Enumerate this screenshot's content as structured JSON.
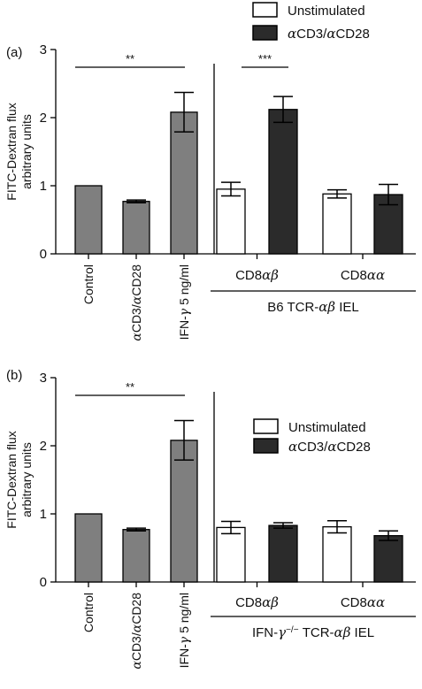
{
  "chart_data": [
    {
      "type": "bar",
      "panel_label": "(a)",
      "ylabel_lines": [
        "FITC-Dextran flux",
        "arbitrary units"
      ],
      "ylim": [
        0,
        3
      ],
      "yticks": [
        "0",
        "1",
        "2",
        "3"
      ],
      "legend": [
        {
          "name": "Unstimulated",
          "color": "#ffffff"
        },
        {
          "name": "αCD3/αCD28",
          "color": "#2b2b2b"
        }
      ],
      "left_group": {
        "categories": [
          "Control",
          "αCD3/αCD28",
          "IFN-γ 5 ng/ml"
        ],
        "color": "#7f7f7f",
        "values": [
          1.0,
          0.77,
          2.08
        ],
        "errors": [
          0.0,
          0.02,
          0.29
        ],
        "significance": {
          "label": "**",
          "from": 0,
          "to": 2
        }
      },
      "right_group": {
        "subgroups": [
          "CD8αβ",
          "CD8αα"
        ],
        "series": [
          {
            "name": "Unstimulated",
            "values": [
              0.95,
              0.88
            ],
            "errors": [
              0.1,
              0.06
            ]
          },
          {
            "name": "αCD3/αCD28",
            "values": [
              2.12,
              0.87
            ],
            "errors": [
              0.19,
              0.15
            ]
          }
        ],
        "significance": {
          "label": "***",
          "subgroup": 0
        },
        "group_label": "B6 TCR-αβ IEL"
      }
    },
    {
      "type": "bar",
      "panel_label": "(b)",
      "ylabel_lines": [
        "FITC-Dextran flux",
        "arbitrary units"
      ],
      "ylim": [
        0,
        3
      ],
      "yticks": [
        "0",
        "1",
        "2",
        "3"
      ],
      "legend": [
        {
          "name": "Unstimulated",
          "color": "#ffffff"
        },
        {
          "name": "αCD3/αCD28",
          "color": "#2b2b2b"
        }
      ],
      "left_group": {
        "categories": [
          "Control",
          "αCD3/αCD28",
          "IFN-γ 5 ng/ml"
        ],
        "color": "#7f7f7f",
        "values": [
          1.0,
          0.77,
          2.08
        ],
        "errors": [
          0.0,
          0.02,
          0.29
        ],
        "significance": {
          "label": "**",
          "from": 0,
          "to": 2
        }
      },
      "right_group": {
        "subgroups": [
          "CD8αβ",
          "CD8αα"
        ],
        "series": [
          {
            "name": "Unstimulated",
            "values": [
              0.8,
              0.81
            ],
            "errors": [
              0.09,
              0.09
            ]
          },
          {
            "name": "αCD3/αCD28",
            "values": [
              0.83,
              0.68
            ],
            "errors": [
              0.04,
              0.07
            ]
          }
        ],
        "group_label": "IFN-γ⁻/⁻ TCR-αβ IEL"
      }
    }
  ]
}
